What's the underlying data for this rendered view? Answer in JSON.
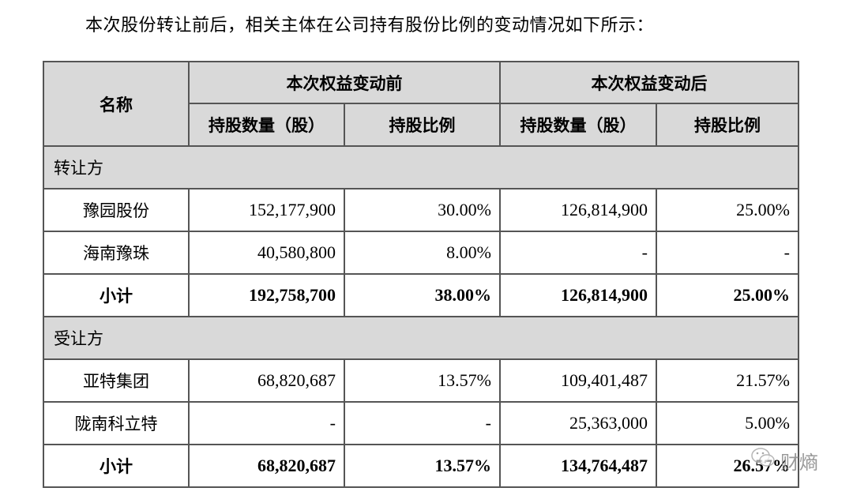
{
  "intro": "本次股份转让前后，相关主体在公司持有股份比例的变动情况如下所示：",
  "header": {
    "name": "名称",
    "before": "本次权益变动前",
    "after": "本次权益变动后",
    "shares": "持股数量（股）",
    "ratio": "持股比例"
  },
  "sections": [
    {
      "label": "转让方",
      "rows": [
        {
          "name": "豫园股份",
          "before_shares": "152,177,900",
          "before_ratio": "30.00%",
          "after_shares": "126,814,900",
          "after_ratio": "25.00%"
        },
        {
          "name": "海南豫珠",
          "before_shares": "40,580,800",
          "before_ratio": "8.00%",
          "after_shares": "-",
          "after_ratio": "-"
        }
      ],
      "subtotal": {
        "name": "小计",
        "before_shares": "192,758,700",
        "before_ratio": "38.00%",
        "after_shares": "126,814,900",
        "after_ratio": "25.00%"
      }
    },
    {
      "label": "受让方",
      "rows": [
        {
          "name": "亚特集团",
          "before_shares": "68,820,687",
          "before_ratio": "13.57%",
          "after_shares": "109,401,487",
          "after_ratio": "21.57%"
        },
        {
          "name": "陇南科立特",
          "before_shares": "-",
          "before_ratio": "-",
          "after_shares": "25,363,000",
          "after_ratio": "5.00%"
        }
      ],
      "subtotal": {
        "name": "小计",
        "before_shares": "68,820,687",
        "before_ratio": "13.57%",
        "after_shares": "134,764,487",
        "after_ratio": "26.57%"
      }
    }
  ],
  "watermark": {
    "text": "财熵",
    "icon": "wechat-icon"
  }
}
